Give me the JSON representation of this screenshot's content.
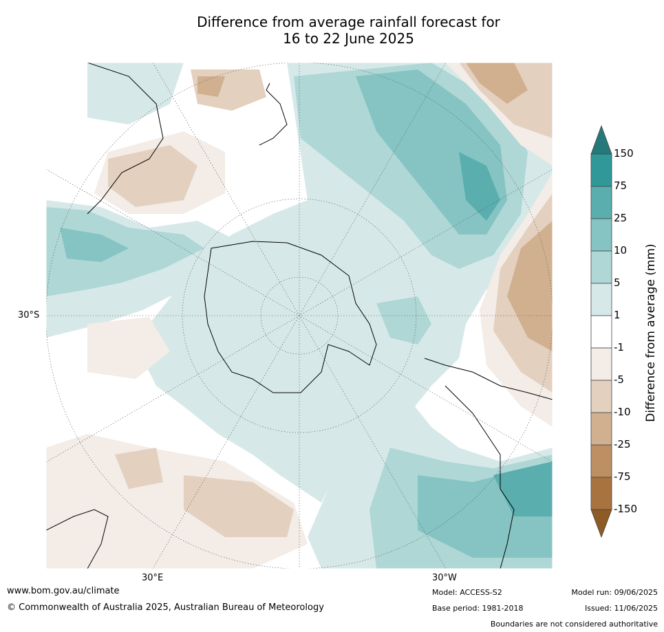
{
  "title": {
    "line1": "Difference from average rainfall forecast for",
    "line2": "16 to 22 June 2025"
  },
  "map": {
    "projection": "south polar stereographic",
    "lat_label": "30°S",
    "lon_labels": [
      "30°E",
      "30°W"
    ]
  },
  "colorbar": {
    "label": "Difference from average (mm)",
    "ticks": [
      "150",
      "75",
      "25",
      "10",
      "5",
      "1",
      "-1",
      "-5",
      "-10",
      "-25",
      "-75",
      "-150"
    ],
    "colors": {
      "150_plus": "#25797a",
      "75_150": "#31989a",
      "25_75": "#5aaeae",
      "10_25": "#85c4c3",
      "5_10": "#afd7d6",
      "1_5": "#d6e9e8",
      "neutral": "#ffffff",
      "m5_m1": "#f3ece7",
      "m10_m5": "#e3d0bf",
      "m25_m10": "#d1b090",
      "m75_m25": "#bd8f63",
      "m150_m75": "#a8733e",
      "below_m150": "#8e5a25"
    }
  },
  "footer": {
    "url": "www.bom.gov.au/climate",
    "copyright": "© Commonwealth of Australia 2025, Australian Bureau of Meteorology",
    "model": "Model: ACCESS-S2",
    "base_period": "Base period: 1981-2018",
    "model_run": "Model run: 09/06/2025",
    "issued": "Issued: 11/06/2025",
    "disclaimer": "Boundaries are not considered authoritative"
  }
}
